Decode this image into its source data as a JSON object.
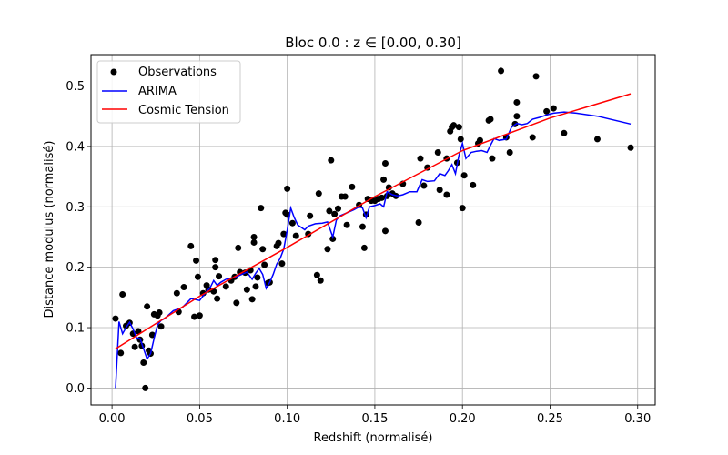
{
  "chart_data": {
    "type": "scatter",
    "title": "Bloc 0.0 : z ∈ [0.00, 0.30]",
    "xlabel": "Redshift (normalisé)",
    "ylabel": "Distance modulus (normalisé)",
    "xlim": [
      -0.012,
      0.31
    ],
    "ylim": [
      -0.028,
      0.552
    ],
    "xticks": [
      0.0,
      0.05,
      0.1,
      0.15,
      0.2,
      0.25,
      0.3
    ],
    "xtick_labels": [
      "0.00",
      "0.05",
      "0.10",
      "0.15",
      "0.20",
      "0.25",
      "0.30"
    ],
    "yticks": [
      0.0,
      0.1,
      0.2,
      0.3,
      0.4,
      0.5
    ],
    "ytick_labels": [
      "0.0",
      "0.1",
      "0.2",
      "0.3",
      "0.4",
      "0.5"
    ],
    "grid": true,
    "legend_position": "top-left",
    "legend": [
      "Observations",
      "ARIMA",
      "Cosmic Tension"
    ],
    "colors": {
      "observations": "#000000",
      "arima": "#0000ff",
      "cosmic_tension": "#ff0000"
    },
    "series": [
      {
        "name": "Observations",
        "kind": "scatter",
        "points": [
          [
            0.002,
            0.115
          ],
          [
            0.005,
            0.058
          ],
          [
            0.006,
            0.155
          ],
          [
            0.008,
            0.103
          ],
          [
            0.01,
            0.108
          ],
          [
            0.012,
            0.09
          ],
          [
            0.013,
            0.068
          ],
          [
            0.015,
            0.094
          ],
          [
            0.016,
            0.08
          ],
          [
            0.017,
            0.07
          ],
          [
            0.018,
            0.042
          ],
          [
            0.019,
            0.0
          ],
          [
            0.02,
            0.135
          ],
          [
            0.021,
            0.062
          ],
          [
            0.022,
            0.057
          ],
          [
            0.023,
            0.088
          ],
          [
            0.024,
            0.122
          ],
          [
            0.026,
            0.12
          ],
          [
            0.027,
            0.125
          ],
          [
            0.028,
            0.102
          ],
          [
            0.037,
            0.157
          ],
          [
            0.038,
            0.126
          ],
          [
            0.041,
            0.167
          ],
          [
            0.045,
            0.235
          ],
          [
            0.047,
            0.118
          ],
          [
            0.048,
            0.211
          ],
          [
            0.049,
            0.184
          ],
          [
            0.05,
            0.12
          ],
          [
            0.052,
            0.157
          ],
          [
            0.054,
            0.17
          ],
          [
            0.055,
            0.163
          ],
          [
            0.058,
            0.16
          ],
          [
            0.059,
            0.212
          ],
          [
            0.059,
            0.2
          ],
          [
            0.06,
            0.148
          ],
          [
            0.061,
            0.185
          ],
          [
            0.065,
            0.168
          ],
          [
            0.068,
            0.178
          ],
          [
            0.07,
            0.184
          ],
          [
            0.071,
            0.141
          ],
          [
            0.072,
            0.232
          ],
          [
            0.073,
            0.192
          ],
          [
            0.076,
            0.191
          ],
          [
            0.077,
            0.163
          ],
          [
            0.079,
            0.195
          ],
          [
            0.08,
            0.147
          ],
          [
            0.081,
            0.25
          ],
          [
            0.081,
            0.241
          ],
          [
            0.082,
            0.168
          ],
          [
            0.083,
            0.183
          ],
          [
            0.085,
            0.298
          ],
          [
            0.086,
            0.23
          ],
          [
            0.087,
            0.204
          ],
          [
            0.089,
            0.174
          ],
          [
            0.09,
            0.175
          ],
          [
            0.094,
            0.235
          ],
          [
            0.095,
            0.24
          ],
          [
            0.097,
            0.206
          ],
          [
            0.098,
            0.255
          ],
          [
            0.099,
            0.29
          ],
          [
            0.1,
            0.33
          ],
          [
            0.1,
            0.287
          ],
          [
            0.103,
            0.273
          ],
          [
            0.105,
            0.252
          ],
          [
            0.112,
            0.255
          ],
          [
            0.113,
            0.285
          ],
          [
            0.117,
            0.187
          ],
          [
            0.118,
            0.322
          ],
          [
            0.119,
            0.178
          ],
          [
            0.123,
            0.23
          ],
          [
            0.124,
            0.293
          ],
          [
            0.125,
            0.377
          ],
          [
            0.126,
            0.247
          ],
          [
            0.127,
            0.288
          ],
          [
            0.129,
            0.297
          ],
          [
            0.131,
            0.317
          ],
          [
            0.133,
            0.317
          ],
          [
            0.134,
            0.27
          ],
          [
            0.137,
            0.333
          ],
          [
            0.141,
            0.303
          ],
          [
            0.143,
            0.267
          ],
          [
            0.144,
            0.232
          ],
          [
            0.145,
            0.287
          ],
          [
            0.146,
            0.313
          ],
          [
            0.148,
            0.31
          ],
          [
            0.15,
            0.31
          ],
          [
            0.152,
            0.313
          ],
          [
            0.154,
            0.315
          ],
          [
            0.155,
            0.345
          ],
          [
            0.156,
            0.26
          ],
          [
            0.156,
            0.372
          ],
          [
            0.157,
            0.318
          ],
          [
            0.158,
            0.332
          ],
          [
            0.16,
            0.322
          ],
          [
            0.162,
            0.318
          ],
          [
            0.166,
            0.338
          ],
          [
            0.175,
            0.274
          ],
          [
            0.176,
            0.38
          ],
          [
            0.178,
            0.335
          ],
          [
            0.18,
            0.365
          ],
          [
            0.186,
            0.39
          ],
          [
            0.187,
            0.328
          ],
          [
            0.191,
            0.32
          ],
          [
            0.191,
            0.38
          ],
          [
            0.193,
            0.425
          ],
          [
            0.194,
            0.432
          ],
          [
            0.195,
            0.435
          ],
          [
            0.197,
            0.373
          ],
          [
            0.198,
            0.432
          ],
          [
            0.199,
            0.412
          ],
          [
            0.2,
            0.298
          ],
          [
            0.201,
            0.352
          ],
          [
            0.206,
            0.336
          ],
          [
            0.209,
            0.405
          ],
          [
            0.21,
            0.41
          ],
          [
            0.215,
            0.443
          ],
          [
            0.216,
            0.445
          ],
          [
            0.217,
            0.38
          ],
          [
            0.222,
            0.525
          ],
          [
            0.225,
            0.415
          ],
          [
            0.227,
            0.39
          ],
          [
            0.23,
            0.437
          ],
          [
            0.231,
            0.45
          ],
          [
            0.231,
            0.473
          ],
          [
            0.24,
            0.415
          ],
          [
            0.242,
            0.516
          ],
          [
            0.248,
            0.458
          ],
          [
            0.252,
            0.463
          ],
          [
            0.258,
            0.422
          ],
          [
            0.277,
            0.412
          ],
          [
            0.296,
            0.398
          ]
        ]
      },
      {
        "name": "ARIMA",
        "kind": "line",
        "points": [
          [
            0.002,
            0.0
          ],
          [
            0.004,
            0.11
          ],
          [
            0.006,
            0.09
          ],
          [
            0.008,
            0.1
          ],
          [
            0.01,
            0.109
          ],
          [
            0.012,
            0.098
          ],
          [
            0.014,
            0.083
          ],
          [
            0.016,
            0.082
          ],
          [
            0.018,
            0.065
          ],
          [
            0.02,
            0.048
          ],
          [
            0.022,
            0.057
          ],
          [
            0.024,
            0.082
          ],
          [
            0.026,
            0.105
          ],
          [
            0.028,
            0.112
          ],
          [
            0.03,
            0.115
          ],
          [
            0.035,
            0.128
          ],
          [
            0.04,
            0.133
          ],
          [
            0.045,
            0.148
          ],
          [
            0.05,
            0.145
          ],
          [
            0.054,
            0.16
          ],
          [
            0.056,
            0.166
          ],
          [
            0.058,
            0.178
          ],
          [
            0.06,
            0.17
          ],
          [
            0.062,
            0.175
          ],
          [
            0.065,
            0.18
          ],
          [
            0.07,
            0.183
          ],
          [
            0.074,
            0.188
          ],
          [
            0.077,
            0.192
          ],
          [
            0.08,
            0.18
          ],
          [
            0.082,
            0.19
          ],
          [
            0.084,
            0.198
          ],
          [
            0.086,
            0.188
          ],
          [
            0.088,
            0.165
          ],
          [
            0.09,
            0.175
          ],
          [
            0.092,
            0.188
          ],
          [
            0.094,
            0.205
          ],
          [
            0.096,
            0.215
          ],
          [
            0.098,
            0.23
          ],
          [
            0.1,
            0.262
          ],
          [
            0.102,
            0.298
          ],
          [
            0.104,
            0.282
          ],
          [
            0.106,
            0.27
          ],
          [
            0.11,
            0.262
          ],
          [
            0.112,
            0.268
          ],
          [
            0.116,
            0.272
          ],
          [
            0.12,
            0.273
          ],
          [
            0.123,
            0.275
          ],
          [
            0.126,
            0.25
          ],
          [
            0.128,
            0.278
          ],
          [
            0.13,
            0.285
          ],
          [
            0.134,
            0.29
          ],
          [
            0.138,
            0.295
          ],
          [
            0.141,
            0.3
          ],
          [
            0.143,
            0.298
          ],
          [
            0.145,
            0.282
          ],
          [
            0.147,
            0.3
          ],
          [
            0.15,
            0.302
          ],
          [
            0.153,
            0.305
          ],
          [
            0.155,
            0.3
          ],
          [
            0.157,
            0.325
          ],
          [
            0.16,
            0.32
          ],
          [
            0.163,
            0.318
          ],
          [
            0.166,
            0.32
          ],
          [
            0.17,
            0.325
          ],
          [
            0.174,
            0.325
          ],
          [
            0.177,
            0.345
          ],
          [
            0.18,
            0.342
          ],
          [
            0.184,
            0.343
          ],
          [
            0.187,
            0.355
          ],
          [
            0.19,
            0.352
          ],
          [
            0.192,
            0.36
          ],
          [
            0.194,
            0.37
          ],
          [
            0.196,
            0.355
          ],
          [
            0.198,
            0.385
          ],
          [
            0.2,
            0.405
          ],
          [
            0.202,
            0.38
          ],
          [
            0.205,
            0.39
          ],
          [
            0.208,
            0.392
          ],
          [
            0.211,
            0.393
          ],
          [
            0.214,
            0.39
          ],
          [
            0.216,
            0.402
          ],
          [
            0.218,
            0.413
          ],
          [
            0.221,
            0.41
          ],
          [
            0.225,
            0.412
          ],
          [
            0.228,
            0.432
          ],
          [
            0.231,
            0.438
          ],
          [
            0.234,
            0.436
          ],
          [
            0.237,
            0.438
          ],
          [
            0.24,
            0.445
          ],
          [
            0.244,
            0.448
          ],
          [
            0.248,
            0.452
          ],
          [
            0.252,
            0.455
          ],
          [
            0.258,
            0.457
          ],
          [
            0.265,
            0.455
          ],
          [
            0.277,
            0.45
          ],
          [
            0.296,
            0.437
          ]
        ]
      },
      {
        "name": "Cosmic Tension",
        "kind": "line",
        "points": [
          [
            0.002,
            0.065
          ],
          [
            0.05,
            0.152
          ],
          [
            0.1,
            0.233
          ],
          [
            0.15,
            0.317
          ],
          [
            0.2,
            0.393
          ],
          [
            0.25,
            0.447
          ],
          [
            0.296,
            0.487
          ]
        ]
      }
    ]
  }
}
